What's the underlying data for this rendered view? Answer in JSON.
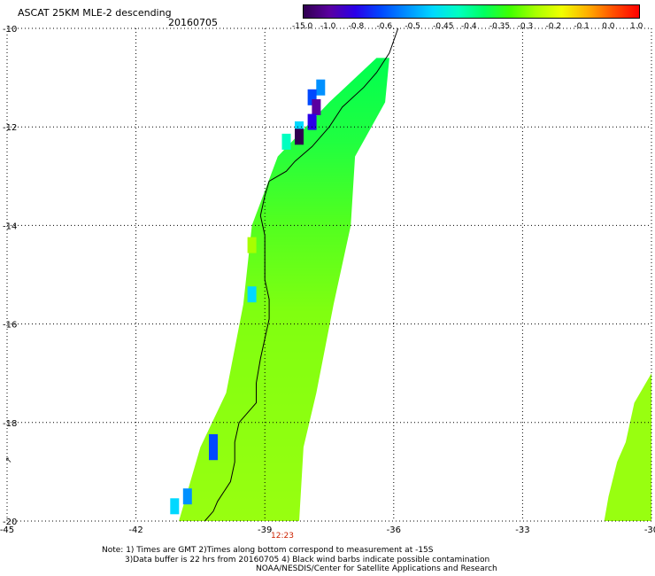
{
  "header": {
    "title": "ASCAT 25KM MLE-2 descending",
    "date": "20160705"
  },
  "colorbar": {
    "labels": [
      "-15.0",
      "-1.0",
      "-0.8",
      "-0.6",
      "-0.5",
      "-0.45",
      "-0.4",
      "-0.35",
      "-0.3",
      "-0.2",
      "-0.1",
      "0.0",
      "1.0"
    ],
    "colors": [
      "#300050",
      "#5a00a0",
      "#2a00e8",
      "#0048ff",
      "#0090ff",
      "#00d8ff",
      "#00ffc0",
      "#00ff60",
      "#40ff00",
      "#a8ff00",
      "#f0ff00",
      "#ffb000",
      "#ff5000",
      "#ff0000"
    ]
  },
  "map": {
    "lon_range": [
      -45,
      -30
    ],
    "lat_range": [
      -20,
      -10
    ],
    "lon_ticks": [
      "-45",
      "-42",
      "-39",
      "-36",
      "-33",
      "-30"
    ],
    "lat_ticks": [
      "-10",
      "-12",
      "-14",
      "-16",
      "-18",
      "-20"
    ],
    "time_label": "12:23",
    "swath_main": {
      "west_edge": [
        [
          -36.4,
          -10.6
        ],
        [
          -37.5,
          -11.5
        ],
        [
          -38.7,
          -12.6
        ],
        [
          -39.3,
          -14.0
        ],
        [
          -39.5,
          -15.6
        ],
        [
          -39.9,
          -17.4
        ],
        [
          -40.5,
          -18.5
        ],
        [
          -41.0,
          -20.0
        ]
      ],
      "east_edge": [
        [
          -36.1,
          -10.6
        ],
        [
          -36.2,
          -11.5
        ],
        [
          -36.9,
          -12.6
        ],
        [
          -37.0,
          -14.0
        ],
        [
          -37.4,
          -15.6
        ],
        [
          -37.8,
          -17.4
        ],
        [
          -38.1,
          -18.5
        ],
        [
          -38.2,
          -20.0
        ]
      ]
    },
    "swath_right": {
      "outline": [
        [
          -30.0,
          -17.0
        ],
        [
          -30.4,
          -17.6
        ],
        [
          -30.6,
          -18.4
        ],
        [
          -30.8,
          -18.8
        ],
        [
          -31.0,
          -19.5
        ],
        [
          -31.1,
          -20.0
        ],
        [
          -30.0,
          -20.0
        ]
      ]
    },
    "coastline": [
      [
        -35.9,
        -10.0
      ],
      [
        -36.1,
        -10.5
      ],
      [
        -36.4,
        -10.9
      ],
      [
        -36.7,
        -11.2
      ],
      [
        -37.2,
        -11.6
      ],
      [
        -37.5,
        -12.0
      ],
      [
        -37.9,
        -12.4
      ],
      [
        -38.3,
        -12.7
      ],
      [
        -38.5,
        -12.9
      ],
      [
        -38.9,
        -13.1
      ],
      [
        -39.0,
        -13.4
      ],
      [
        -39.1,
        -13.8
      ],
      [
        -39.0,
        -14.2
      ],
      [
        -39.0,
        -14.6
      ],
      [
        -39.0,
        -15.1
      ],
      [
        -38.9,
        -15.5
      ],
      [
        -38.9,
        -15.9
      ],
      [
        -39.0,
        -16.3
      ],
      [
        -39.1,
        -16.7
      ],
      [
        -39.2,
        -17.2
      ],
      [
        -39.2,
        -17.6
      ],
      [
        -39.6,
        -18.0
      ],
      [
        -39.7,
        -18.4
      ],
      [
        -39.7,
        -18.8
      ],
      [
        -39.8,
        -19.2
      ],
      [
        -40.1,
        -19.6
      ],
      [
        -40.2,
        -19.8
      ],
      [
        -40.4,
        -20.0
      ]
    ],
    "blocks": [
      {
        "lon": -37.7,
        "lat": -11.2,
        "color": "#0090ff"
      },
      {
        "lon": -37.9,
        "lat": -11.4,
        "color": "#0048ff"
      },
      {
        "lon": -37.8,
        "lat": -11.6,
        "color": "#5a00a0"
      },
      {
        "lon": -37.9,
        "lat": -11.9,
        "color": "#2a00e8"
      },
      {
        "lon": -38.2,
        "lat": -12.05,
        "color": "#00d8ff"
      },
      {
        "lon": -38.2,
        "lat": -12.2,
        "color": "#300050"
      },
      {
        "lon": -38.5,
        "lat": -12.3,
        "color": "#00ffc0"
      },
      {
        "lon": -39.3,
        "lat": -14.4,
        "color": "#a8ff00"
      },
      {
        "lon": -39.3,
        "lat": -15.4,
        "color": "#00d8ff"
      },
      {
        "lon": -40.2,
        "lat": -18.4,
        "color": "#0048ff"
      },
      {
        "lon": -40.2,
        "lat": -18.6,
        "color": "#0048ff"
      },
      {
        "lon": -40.8,
        "lat": -19.5,
        "color": "#0090ff"
      },
      {
        "lon": -41.1,
        "lat": -19.7,
        "color": "#00d8ff"
      }
    ]
  },
  "notes": {
    "line1": "Note: 1) Times are GMT 2)Times along bottom correspond to measurement at -15S",
    "line2": "3)Data buffer is 22 hrs from 20160705 4) Black wind barbs indicate possible contamination",
    "line3": "NOAA/NESDIS/Center for Satellite Applications and Research"
  }
}
